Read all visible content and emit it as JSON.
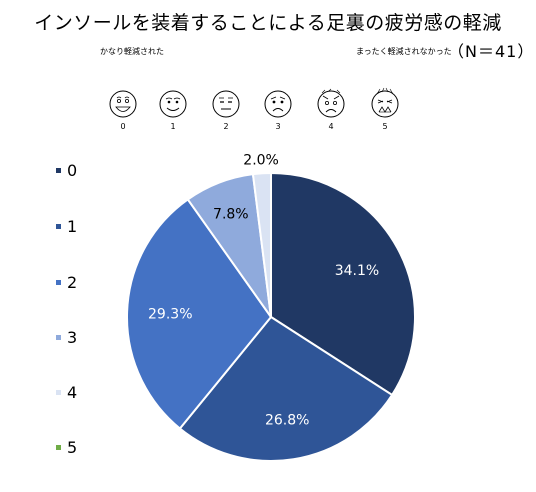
{
  "title": "インソールを装着することによる足裏の疲労感の軽減",
  "scale": {
    "left_label": "かなり軽減された",
    "right_label": "まったく軽減されなかった",
    "sample_size": "（N＝41）",
    "face_numbers": [
      "0",
      "1",
      "2",
      "3",
      "4",
      "5"
    ]
  },
  "chart_data": {
    "type": "pie",
    "title": "インソールを装着することによる足裏の疲労感の軽減",
    "categories": [
      "0",
      "1",
      "2",
      "3",
      "4",
      "5"
    ],
    "values": [
      34.1,
      26.8,
      29.3,
      7.8,
      2.0,
      0.0
    ],
    "data_labels": [
      "34.1%",
      "26.8%",
      "29.3%",
      "7.8%",
      "2.0%",
      ""
    ],
    "colors": [
      "#203864",
      "#2f5597",
      "#4472c4",
      "#8faadc",
      "#dae3f3",
      "#70ad47"
    ],
    "label_colors": [
      "#ffffff",
      "#ffffff",
      "#ffffff",
      "#000000",
      "#000000",
      "#000000"
    ],
    "legend_position": "left",
    "start_angle_deg": 0,
    "direction": "clockwise"
  }
}
